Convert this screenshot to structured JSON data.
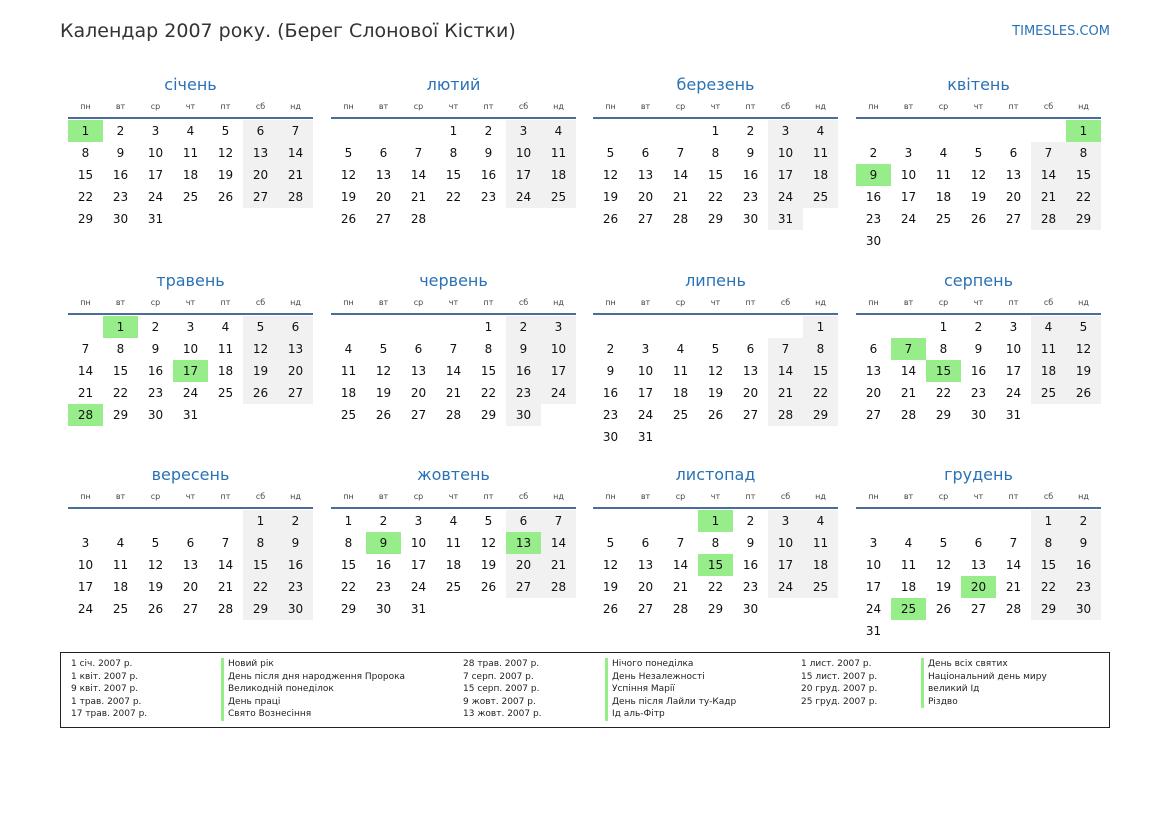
{
  "title": "Календар 2007 року. (Берег Слонової Кістки)",
  "site": "TIMESLES.COM",
  "weekdays": [
    "пн",
    "вт",
    "ср",
    "чт",
    "пт",
    "сб",
    "нд"
  ],
  "colors": {
    "holiday": "#98ed8b",
    "weekend": "#f1f1f1",
    "month_name": "#2a72b5",
    "rule": "#4a6d9a"
  },
  "months": [
    {
      "name": "січень",
      "offset": 0,
      "days": 31,
      "holidays": [
        1
      ]
    },
    {
      "name": "лютий",
      "offset": 3,
      "days": 28,
      "holidays": []
    },
    {
      "name": "березень",
      "offset": 3,
      "days": 31,
      "holidays": []
    },
    {
      "name": "квітень",
      "offset": 6,
      "days": 30,
      "holidays": [
        1,
        9
      ]
    },
    {
      "name": "травень",
      "offset": 1,
      "days": 31,
      "holidays": [
        1,
        17,
        28
      ]
    },
    {
      "name": "червень",
      "offset": 4,
      "days": 30,
      "holidays": []
    },
    {
      "name": "липень",
      "offset": 6,
      "days": 31,
      "holidays": []
    },
    {
      "name": "серпень",
      "offset": 2,
      "days": 31,
      "holidays": [
        7,
        15
      ]
    },
    {
      "name": "вересень",
      "offset": 5,
      "days": 30,
      "holidays": []
    },
    {
      "name": "жовтень",
      "offset": 0,
      "days": 31,
      "holidays": [
        9,
        13
      ]
    },
    {
      "name": "листопад",
      "offset": 3,
      "days": 30,
      "holidays": [
        1,
        15
      ]
    },
    {
      "name": "грудень",
      "offset": 5,
      "days": 31,
      "holidays": [
        20,
        25
      ]
    }
  ],
  "legend": [
    [
      {
        "date": "1 січ. 2007 р.",
        "name": "Новий рік"
      },
      {
        "date": "1 квіт. 2007 р.",
        "name": "День після дня народження Пророка"
      },
      {
        "date": "9 квіт. 2007 р.",
        "name": "Великодній понеділок"
      },
      {
        "date": "1 трав. 2007 р.",
        "name": "День праці"
      },
      {
        "date": "17 трав. 2007 р.",
        "name": "Свято Вознесіння"
      }
    ],
    [
      {
        "date": "28 трав. 2007 р.",
        "name": "Нічого понеділка"
      },
      {
        "date": "7 серп. 2007 р.",
        "name": "День Незалежності"
      },
      {
        "date": "15 серп. 2007 р.",
        "name": "Успіння Марії"
      },
      {
        "date": "9 жовт. 2007 р.",
        "name": "День після Лайли ту-Кадр"
      },
      {
        "date": "13 жовт. 2007 р.",
        "name": "Ід аль-Фітр"
      }
    ],
    [
      {
        "date": "1 лист. 2007 р.",
        "name": "День всіх святих"
      },
      {
        "date": "15 лист. 2007 р.",
        "name": "Національний день миру"
      },
      {
        "date": "20 груд. 2007 р.",
        "name": "великий Ід"
      },
      {
        "date": "25 груд. 2007 р.",
        "name": "Різдво"
      }
    ]
  ]
}
